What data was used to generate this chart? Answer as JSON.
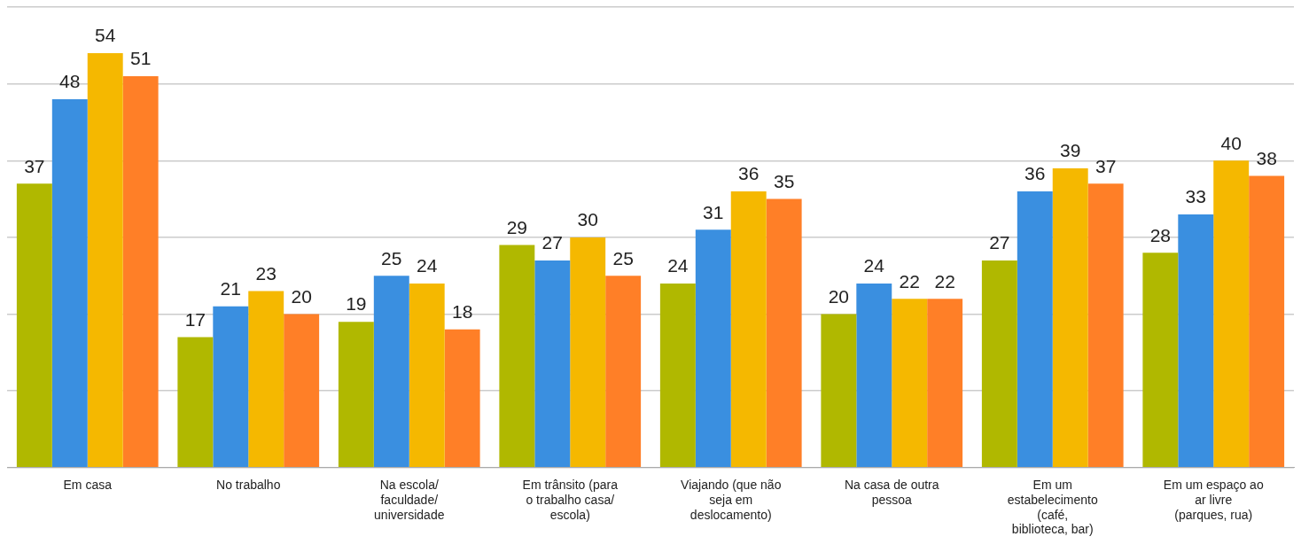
{
  "chart_data": {
    "type": "bar",
    "categories": [
      "Em casa",
      "No trabalho",
      "Na escola/ faculdade/ universidade",
      "Em trânsito (para o trabalho casa/ escola)",
      "Viajando (que não seja em deslocamento)",
      "Na casa de outra pessoa",
      "Em um estabelecimento (café, biblioteca, bar)",
      "Em um espaço ao ar livre (parques, rua)"
    ],
    "series": [
      {
        "color": "#b0b800",
        "values": [
          37,
          17,
          19,
          29,
          24,
          20,
          27,
          28
        ]
      },
      {
        "color": "#3a8fe0",
        "values": [
          48,
          21,
          25,
          27,
          31,
          24,
          36,
          33
        ]
      },
      {
        "color": "#f5b800",
        "values": [
          54,
          23,
          24,
          30,
          36,
          22,
          39,
          40
        ]
      },
      {
        "color": "#ff7f27",
        "values": [
          51,
          20,
          18,
          25,
          35,
          22,
          37,
          38
        ]
      }
    ],
    "ylim": [
      0,
      60
    ],
    "yticks": [
      {
        "value": 0,
        "label": null
      },
      {
        "value": 10,
        "label": null
      },
      {
        "value": 20,
        "label": null
      },
      {
        "value": 30,
        "label": null
      },
      {
        "value": 40,
        "label": null
      },
      {
        "value": 50,
        "label": null
      },
      {
        "value": 60,
        "label": null
      }
    ],
    "tick_labels": "x",
    "grid": "y",
    "legend": false,
    "data_labels": true
  }
}
